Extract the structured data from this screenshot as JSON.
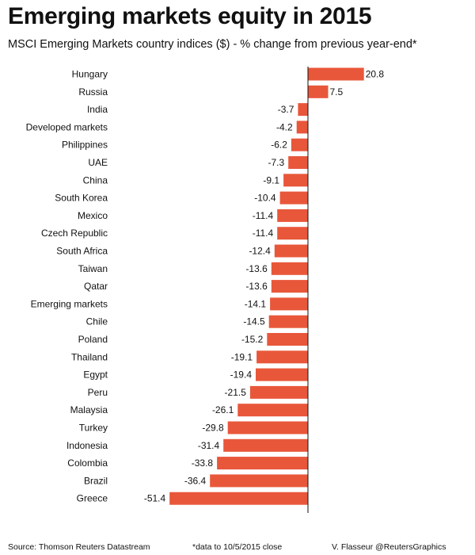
{
  "header": {
    "title": "Emerging markets equity in 2015",
    "subtitle": "MSCI Emerging Markets country indices ($) - % change from previous year-end*"
  },
  "footer": {
    "source": "Source: Thomson Reuters Datastream",
    "note": "*data to 10/5/2015 close",
    "credit": "V. Flasseur @ReutersGraphics"
  },
  "colors": {
    "bar": "#e8573a",
    "axis": "#111111",
    "text": "#111111"
  },
  "chart_data": {
    "type": "bar",
    "orientation": "horizontal",
    "title": "Emerging markets equity in 2015",
    "subtitle": "MSCI Emerging Markets country indices ($) - % change from previous year-end*",
    "categories": [
      "Hungary",
      "Russia",
      "India",
      "Developed markets",
      "Philippines",
      "UAE",
      "China",
      "South Korea",
      "Mexico",
      "Czech Republic",
      "South Africa",
      "Taiwan",
      "Qatar",
      "Emerging markets",
      "Chile",
      "Poland",
      "Thailand",
      "Egypt",
      "Peru",
      "Malaysia",
      "Turkey",
      "Indonesia",
      "Colombia",
      "Brazil",
      "Greece"
    ],
    "values": [
      20.8,
      7.5,
      -3.7,
      -4.2,
      -6.2,
      -7.3,
      -9.1,
      -10.4,
      -11.4,
      -11.4,
      -12.4,
      -13.6,
      -13.6,
      -14.1,
      -14.5,
      -15.2,
      -19.1,
      -19.4,
      -21.5,
      -26.1,
      -29.8,
      -31.4,
      -33.8,
      -36.4,
      -51.4
    ],
    "data_labels": [
      "20.8",
      "7.5",
      "-3.7",
      "-4.2",
      "-6.2",
      "-7.3",
      "-9.1",
      "-10.4",
      "-11.4",
      "-11.4",
      "-12.4",
      "-13.6",
      "-13.6",
      "-14.1",
      "-14.5",
      "-15.2",
      "-19.1",
      "-19.4",
      "-21.5",
      "-26.1",
      "-29.8",
      "-31.4",
      "-33.8",
      "-36.4",
      "-51.4"
    ],
    "xlim": [
      -51.4,
      20.8
    ],
    "xlabel": "",
    "ylabel": "",
    "grid": false,
    "legend": "none"
  }
}
